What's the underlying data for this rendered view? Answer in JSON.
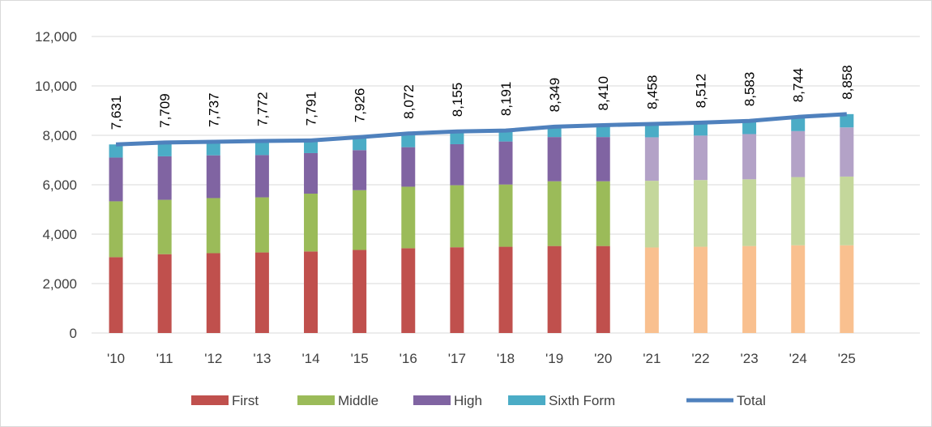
{
  "chart_data": {
    "type": "bar",
    "stacked": true,
    "categories": [
      "'10",
      "'11",
      "'12",
      "'13",
      "'14",
      "'15",
      "'16",
      "'17",
      "'18",
      "'19",
      "'20",
      "'21",
      "'22",
      "'23",
      "'24",
      "'25"
    ],
    "projected_from_index": 11,
    "series": [
      {
        "name": "First",
        "color": "#c0504d",
        "projected_color": "#f9c08f",
        "values": [
          3070,
          3190,
          3230,
          3260,
          3300,
          3360,
          3430,
          3470,
          3490,
          3520,
          3520,
          3460,
          3490,
          3520,
          3550,
          3550
        ]
      },
      {
        "name": "Middle",
        "color": "#9bbb59",
        "projected_color": "#c4d79b",
        "values": [
          2260,
          2200,
          2230,
          2230,
          2340,
          2420,
          2490,
          2510,
          2520,
          2620,
          2620,
          2700,
          2700,
          2700,
          2760,
          2780
        ]
      },
      {
        "name": "High",
        "color": "#8064a2",
        "projected_color": "#b3a2c7",
        "values": [
          1770,
          1760,
          1730,
          1710,
          1640,
          1620,
          1600,
          1660,
          1740,
          1790,
          1790,
          1760,
          1800,
          1830,
          1860,
          1990
        ]
      },
      {
        "name": "Sixth Form",
        "color": "#4bacc6",
        "projected_color": "#4bacc6",
        "values": [
          531,
          559,
          547,
          572,
          511,
          526,
          552,
          515,
          441,
          419,
          480,
          538,
          522,
          533,
          574,
          538
        ]
      }
    ],
    "line_series": {
      "name": "Total",
      "color": "#4f81bd",
      "values": [
        7631,
        7709,
        7737,
        7772,
        7791,
        7926,
        8072,
        8155,
        8191,
        8349,
        8410,
        8458,
        8512,
        8583,
        8744,
        8858
      ]
    },
    "data_labels": [
      "7,631",
      "7,709",
      "7,737",
      "7,772",
      "7,791",
      "7,926",
      "8,072",
      "8,155",
      "8,191",
      "8,349",
      "8,410",
      "8,458",
      "8,512",
      "8,583",
      "8,744",
      "8,858"
    ],
    "ylim": [
      0,
      12000
    ],
    "yticks": [
      0,
      2000,
      4000,
      6000,
      8000,
      10000,
      12000
    ],
    "ytick_labels": [
      "0",
      "2,000",
      "4,000",
      "6,000",
      "8,000",
      "10,000",
      "12,000"
    ],
    "grid": true,
    "legend_position": "bottom",
    "legend": [
      "First",
      "Middle",
      "High",
      "Sixth Form",
      "Total"
    ],
    "title": "",
    "xlabel": "",
    "ylabel": ""
  }
}
